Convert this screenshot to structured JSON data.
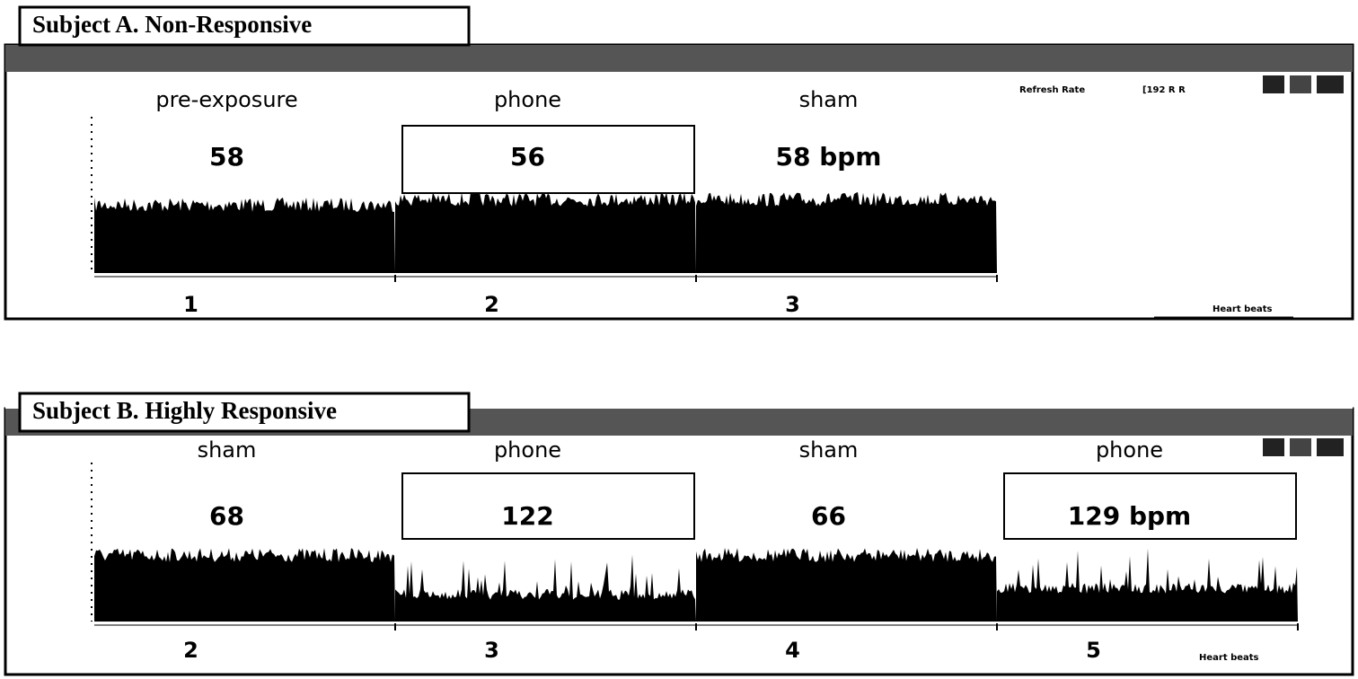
{
  "panels": [
    {
      "title": "Subject A. Non-Responsive",
      "segments": [
        {
          "label": "pre-exposure",
          "bpm": "58",
          "index": "1"
        },
        {
          "label": "phone",
          "bpm": "56",
          "index": "2"
        },
        {
          "label": "sham",
          "bpm": "58 bpm",
          "index": "3"
        }
      ],
      "refresh_label": "Refresh Rate",
      "refresh_value": "[192 R R",
      "x_label": "Heart beats"
    },
    {
      "title": "Subject B. Highly Responsive",
      "segments": [
        {
          "label": "sham",
          "bpm": "68",
          "index": "2"
        },
        {
          "label": "phone",
          "bpm": "122",
          "index": "3"
        },
        {
          "label": "sham",
          "bpm": "66",
          "index": "4"
        },
        {
          "label": "phone",
          "bpm": "129 bpm",
          "index": "5"
        }
      ],
      "x_label": "Heart beats"
    }
  ]
}
